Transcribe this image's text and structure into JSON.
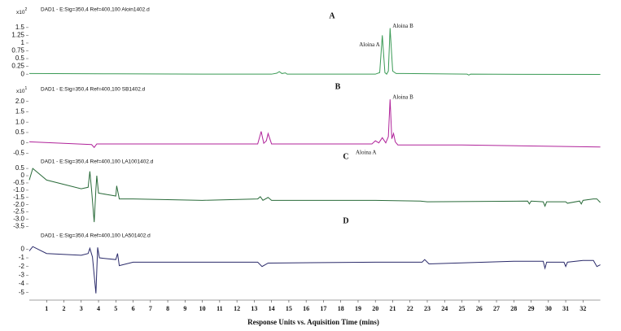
{
  "chart_data": [
    {
      "type": "line",
      "header": "DAD1 - E:Sig=350,4  Ref=400,100 Aloin1402.d",
      "label": "A",
      "exponent": {
        "base": "x10",
        "power": "2"
      },
      "color": "#3a9a55",
      "xlim": [
        0,
        33
      ],
      "ylim": [
        -0.1,
        1.6
      ],
      "yticks": [
        0,
        0.25,
        0.5,
        0.75,
        1,
        1.25,
        1.5
      ],
      "x": [
        0,
        5,
        10,
        14.0,
        14.3,
        14.45,
        14.6,
        14.8,
        14.9,
        15.1,
        20.0,
        20.25,
        20.4,
        20.55,
        20.65,
        20.75,
        20.85,
        21.0,
        21.2,
        21.6,
        25.3,
        25.4,
        25.5,
        33
      ],
      "values": [
        0.02,
        0.01,
        0.0,
        0.0,
        0.03,
        0.08,
        0.02,
        0.04,
        0.0,
        0.0,
        0.0,
        0.05,
        1.25,
        0.05,
        0.0,
        0.1,
        1.48,
        0.1,
        0.02,
        0.02,
        0.0,
        -0.03,
        0.0,
        -0.01
      ],
      "annotations": [
        {
          "text": "Aloina A",
          "x": 20.4
        },
        {
          "text": "Aloina B",
          "x": 20.85
        }
      ]
    },
    {
      "type": "line",
      "header": "DAD1 - E:Sig=350,4  Ref=400,100 SB1402.d",
      "label": "B",
      "exponent": {
        "base": "x10",
        "power": "1"
      },
      "color": "#b0239a",
      "xlim": [
        0,
        33
      ],
      "ylim": [
        -0.6,
        2.3
      ],
      "yticks": [
        -0.5,
        0,
        0.5,
        {
          "value": 1,
          "label": "1.0"
        },
        1.5,
        {
          "value": 2,
          "label": "2.0"
        }
      ],
      "x": [
        0,
        2,
        3.6,
        3.75,
        3.9,
        5,
        10,
        13.2,
        13.4,
        13.55,
        13.7,
        13.8,
        14.0,
        16,
        19.8,
        20.0,
        20.2,
        20.4,
        20.6,
        20.75,
        20.85,
        20.95,
        21.05,
        21.15,
        21.3,
        25,
        33
      ],
      "values": [
        0.05,
        -0.02,
        -0.08,
        -0.22,
        -0.05,
        -0.05,
        -0.05,
        -0.05,
        0.55,
        -0.02,
        0.1,
        0.45,
        -0.05,
        -0.05,
        -0.05,
        0.1,
        0.0,
        0.25,
        0.0,
        0.3,
        2.1,
        0.2,
        0.45,
        0.05,
        -0.1,
        -0.1,
        -0.2
      ],
      "annotations": [
        {
          "text": "Aloina A",
          "x": 20.2
        },
        {
          "text": "Aloina B",
          "x": 20.85
        }
      ]
    },
    {
      "type": "line",
      "header": "DAD1 - E:Sig=350,4  Ref=400,100 LA1001402.d",
      "label": "C",
      "color": "#2a6b3a",
      "xlim": [
        0,
        33
      ],
      "ylim": [
        -3.7,
        0.9
      ],
      "yticks": [
        0.5,
        0,
        -0.5,
        {
          "value": -1,
          "label": "-1.0"
        },
        -1.5,
        {
          "value": -2,
          "label": "-2.0"
        },
        -2.5,
        {
          "value": -3,
          "label": "-3.0"
        },
        -3.5
      ],
      "x": [
        0,
        0.2,
        1,
        2,
        3,
        3.4,
        3.5,
        3.6,
        3.75,
        3.85,
        3.9,
        4.0,
        4.5,
        5.0,
        5.05,
        5.2,
        6,
        10,
        13.2,
        13.35,
        13.5,
        13.8,
        14,
        20,
        22.6,
        23,
        28.8,
        28.9,
        29,
        29.7,
        29.8,
        29.9,
        31,
        31.1,
        31.8,
        31.9,
        32,
        32.6,
        32.8,
        33
      ],
      "values": [
        -0.3,
        0.5,
        -0.3,
        -0.6,
        -0.9,
        -0.8,
        0.3,
        -1.0,
        -3.2,
        -0.9,
        0.0,
        -1.2,
        -1.3,
        -1.4,
        -0.7,
        -1.6,
        -1.6,
        -1.7,
        -1.6,
        -1.45,
        -1.7,
        -1.5,
        -1.7,
        -1.7,
        -1.75,
        -1.8,
        -1.75,
        -1.95,
        -1.75,
        -1.8,
        -2.1,
        -1.8,
        -1.8,
        -1.9,
        -1.75,
        -1.95,
        -1.7,
        -1.6,
        -1.6,
        -1.85
      ]
    },
    {
      "type": "line",
      "header": "DAD1 - E:Sig=350,4  Ref=400,100 LA501402.d",
      "label": "D",
      "color": "#2a2a6a",
      "xlim": [
        0,
        33
      ],
      "ylim": [
        -5.5,
        0.6
      ],
      "yticks": [
        0,
        -1,
        -2,
        -3,
        -4,
        -5
      ],
      "xticks": [
        1,
        2,
        3,
        4,
        5,
        6,
        7,
        8,
        9,
        10,
        11,
        12,
        13,
        14,
        15,
        16,
        17,
        18,
        19,
        20,
        21,
        22,
        23,
        24,
        25,
        26,
        27,
        28,
        29,
        30,
        31,
        32
      ],
      "x_label": "Response Units vs. Aquisition Time (mins)",
      "x": [
        0,
        0.2,
        1,
        3,
        3.4,
        3.5,
        3.65,
        3.85,
        3.95,
        4.05,
        4.5,
        5.0,
        5.1,
        5.2,
        6,
        10,
        13.2,
        13.45,
        13.8,
        20,
        22.7,
        22.85,
        23.1,
        28,
        29.7,
        29.8,
        29.9,
        30.9,
        31.0,
        31.1,
        32,
        32.6,
        32.8,
        33
      ],
      "values": [
        -0.2,
        0.3,
        -0.5,
        -0.7,
        -0.5,
        0.1,
        -0.9,
        -5.1,
        0.2,
        -1.0,
        -1.1,
        -1.2,
        -0.5,
        -1.9,
        -1.5,
        -1.5,
        -1.5,
        -2.0,
        -1.6,
        -1.5,
        -1.5,
        -1.2,
        -1.7,
        -1.4,
        -1.4,
        -2.2,
        -1.5,
        -1.5,
        -2.0,
        -1.5,
        -1.3,
        -1.3,
        -2.0,
        -1.8
      ]
    }
  ]
}
